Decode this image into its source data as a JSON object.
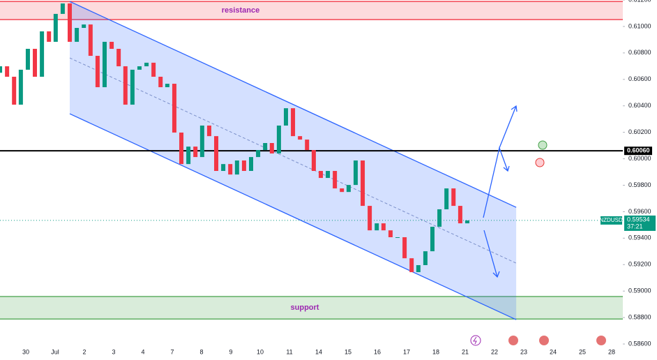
{
  "chart_data": {
    "type": "candlestick",
    "symbol": "NZDUSD",
    "countdown": "37:21",
    "categories": [
      "30",
      "Jul",
      "2",
      "3",
      "4",
      "7",
      "8",
      "9",
      "10",
      "11",
      "14",
      "15",
      "16",
      "17",
      "18",
      "21",
      "22",
      "23",
      "24",
      "25",
      "28"
    ],
    "xlim": [
      -0.881,
      20.38
    ],
    "ylim": [
      0.58479,
      0.612
    ],
    "yticks": [
      {
        "value": 0.586,
        "label": "0.58600"
      },
      {
        "value": 0.588,
        "label": "0.58800"
      },
      {
        "value": 0.59,
        "label": "0.59000"
      },
      {
        "value": 0.592,
        "label": "0.59200"
      },
      {
        "value": 0.594,
        "label": "0.59400"
      },
      {
        "value": 0.596,
        "label": "0.59600"
      },
      {
        "value": 0.598,
        "label": "0.59800"
      },
      {
        "value": 0.6,
        "label": "0.60000"
      },
      {
        "value": 0.602,
        "label": "0.60200"
      },
      {
        "value": 0.604,
        "label": "0.60400"
      },
      {
        "value": 0.606,
        "label": "0.60600"
      },
      {
        "value": 0.608,
        "label": "0.60800"
      },
      {
        "value": 0.61,
        "label": "0.61000"
      },
      {
        "value": 0.612,
        "label": "0.61200"
      }
    ],
    "up_color": "#089981",
    "down_color": "#f23645",
    "x": [
      -0.88,
      -0.64,
      -0.4,
      -0.17,
      0.07,
      0.31,
      0.55,
      0.79,
      1.02,
      1.26,
      1.5,
      1.74,
      1.98,
      2.21,
      2.45,
      2.69,
      2.93,
      3.17,
      3.4,
      3.64,
      3.88,
      4.12,
      4.36,
      4.6,
      4.83,
      5.07,
      5.31,
      5.55,
      5.79,
      6.02,
      6.26,
      6.5,
      6.74,
      6.98,
      7.21,
      7.45,
      7.69,
      7.93,
      8.17,
      8.4,
      8.64,
      8.88,
      9.12,
      9.36,
      9.6,
      9.83,
      10.07,
      10.31,
      10.55,
      10.79,
      11.02,
      11.26,
      11.5,
      11.74,
      11.98,
      12.21,
      12.45,
      12.69,
      12.93,
      13.17,
      13.4,
      13.64,
      13.88,
      14.12,
      14.36,
      14.6,
      14.83,
      15.07
    ],
    "open": [
      0.6065,
      0.60699,
      0.6062,
      0.60409,
      0.60673,
      0.60831,
      0.6062,
      0.60963,
      0.60884,
      0.61095,
      0.61174,
      0.60884,
      0.60989,
      0.61015,
      0.60778,
      0.60541,
      0.60884,
      0.60831,
      0.60699,
      0.60409,
      0.60673,
      0.60699,
      0.60726,
      0.6062,
      0.60541,
      0.60567,
      0.60198,
      0.5996,
      0.60092,
      0.60013,
      0.60251,
      0.60171,
      0.59908,
      0.5996,
      0.59881,
      0.59987,
      0.59908,
      0.60013,
      0.60066,
      0.60119,
      0.6004,
      0.60251,
      0.60382,
      0.60171,
      0.60145,
      0.60066,
      0.59908,
      0.59855,
      0.59908,
      0.59776,
      0.59749,
      0.59802,
      0.59987,
      0.59644,
      0.59459,
      0.59512,
      0.59459,
      0.59407,
      0.59407,
      0.59248,
      0.59143,
      0.59196,
      0.59301,
      0.59486,
      0.59618,
      0.59776,
      0.59644,
      0.59512
    ],
    "close": [
      0.60699,
      0.6062,
      0.60409,
      0.60673,
      0.60831,
      0.6062,
      0.60963,
      0.60884,
      0.61095,
      0.61174,
      0.60884,
      0.60989,
      0.61015,
      0.60778,
      0.60541,
      0.60884,
      0.60831,
      0.60699,
      0.60409,
      0.60673,
      0.60699,
      0.60726,
      0.6062,
      0.60541,
      0.60567,
      0.60198,
      0.5996,
      0.60092,
      0.60013,
      0.60251,
      0.60171,
      0.59908,
      0.5996,
      0.59881,
      0.59987,
      0.59908,
      0.60013,
      0.60066,
      0.60119,
      0.6004,
      0.60251,
      0.60382,
      0.60171,
      0.60145,
      0.60066,
      0.59908,
      0.59855,
      0.59908,
      0.59776,
      0.59749,
      0.59802,
      0.59987,
      0.59644,
      0.59459,
      0.59512,
      0.59459,
      0.59407,
      0.59407,
      0.59248,
      0.59143,
      0.59196,
      0.59301,
      0.59486,
      0.59618,
      0.59776,
      0.59644,
      0.59512,
      0.59534
    ],
    "channel": {
      "x": [
        1.5,
        16.74
      ],
      "upper": [
        0.61189,
        0.59633
      ],
      "middle": [
        0.60762,
        0.59211
      ],
      "lower": [
        0.6034,
        0.58784
      ]
    },
    "resistance": {
      "label": "resistance",
      "range": [
        0.61052,
        0.61189
      ]
    },
    "support": {
      "label": "support",
      "range": [
        0.58789,
        0.58959
      ]
    },
    "level": {
      "value": 0.6006,
      "label": "0.60060"
    },
    "last_price": {
      "value": 0.59534,
      "label": "0.59534"
    }
  }
}
